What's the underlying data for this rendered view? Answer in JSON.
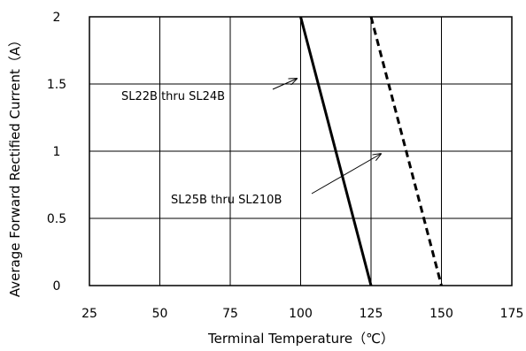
{
  "chart_data": {
    "type": "line",
    "xlabel": "Terminal Temperature（℃）",
    "ylabel": "Average Forward Rectified Current（A）",
    "xlim": [
      25,
      175
    ],
    "ylim": [
      0,
      2
    ],
    "xticks": [
      25,
      50,
      75,
      100,
      125,
      150,
      175
    ],
    "xtick_labels": [
      "25",
      "50",
      "75",
      "100",
      "125",
      "150",
      "175"
    ],
    "yticks": [
      0,
      0.5,
      1,
      1.5,
      2
    ],
    "ytick_labels": [
      "0",
      "0.5",
      "1",
      "1.5",
      "2"
    ],
    "grid": true,
    "series": [
      {
        "name": "SL22B thru SL24B",
        "style": "solid",
        "color": "#000000",
        "x": [
          100,
          125
        ],
        "y": [
          2,
          0
        ]
      },
      {
        "name": "SL25B thru SL210B",
        "style": "dashed",
        "color": "#000000",
        "x": [
          125,
          150
        ],
        "y": [
          2,
          0
        ]
      }
    ],
    "annotations": [
      {
        "text": "SL22B thru SL24B",
        "target_series": 0
      },
      {
        "text": "SL25B thru SL210B",
        "target_series": 1
      }
    ]
  }
}
